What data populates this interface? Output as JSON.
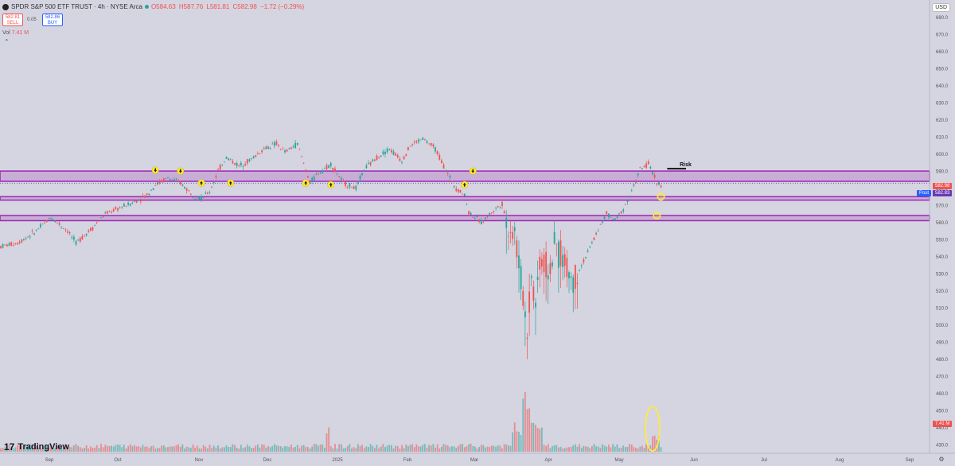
{
  "header": {
    "title": "SPDR S&P 500 ETF TRUST · 4h · NYSE Arca",
    "ohlc": {
      "o": "O584.63",
      "h": "H587.76",
      "l": "L581.81",
      "c": "C582.98",
      "chg": "−1.72 (−0.29%)"
    }
  },
  "trade": {
    "sell_price": "582.81",
    "sell_label": "SELL",
    "spread": "0.05",
    "buy_price": "582.86",
    "buy_label": "BUY"
  },
  "volume": {
    "label": "Vol",
    "value": "7.41 M",
    "axis_badge": "7.41 M"
  },
  "currency": "USD",
  "badges": {
    "last": "582.98",
    "post_label": "Post",
    "post_value": "582.83"
  },
  "annotations": {
    "risk_label": "Risk"
  },
  "brand": {
    "name": "TradingView",
    "mark": "17"
  },
  "colors": {
    "up": "#26a69a",
    "down": "#ef5350",
    "zone": "#9c27b0",
    "highlight": "#ffeb3b",
    "background": "#d5d4e1"
  },
  "chart_data": {
    "type": "candlestick",
    "title": "SPDR S&P 500 ETF TRUST · 4h · NYSE Arca",
    "ylim": [
      425,
      690
    ],
    "y_ticks": [
      430,
      440,
      450,
      460,
      470,
      480,
      490,
      500,
      510,
      520,
      530,
      540,
      550,
      560,
      570,
      580,
      590,
      600,
      610,
      620,
      630,
      640,
      650,
      660,
      670,
      680
    ],
    "x_ticks": [
      "Sep",
      "Oct",
      "Nov",
      "Dec",
      "2025",
      "Feb",
      "Mar",
      "Apr",
      "May",
      "Jun",
      "Jul",
      "Aug",
      "Sep"
    ],
    "price_path_anchors": [
      [
        0,
        546
      ],
      [
        4,
        548
      ],
      [
        8,
        554
      ],
      [
        12,
        563
      ],
      [
        16,
        555
      ],
      [
        18,
        548
      ],
      [
        22,
        557
      ],
      [
        25,
        565
      ],
      [
        28,
        568
      ],
      [
        32,
        572
      ],
      [
        35,
        576
      ],
      [
        37,
        582
      ],
      [
        40,
        586
      ],
      [
        43,
        583
      ],
      [
        46,
        576
      ],
      [
        48,
        574
      ],
      [
        50,
        578
      ],
      [
        52,
        590
      ],
      [
        54,
        598
      ],
      [
        57,
        593
      ],
      [
        60,
        597
      ],
      [
        63,
        603
      ],
      [
        66,
        606
      ],
      [
        68,
        601
      ],
      [
        71,
        606
      ],
      [
        74,
        583
      ],
      [
        76,
        589
      ],
      [
        79,
        594
      ],
      [
        82,
        583
      ],
      [
        85,
        580
      ],
      [
        87,
        591
      ],
      [
        90,
        598
      ],
      [
        93,
        603
      ],
      [
        96,
        596
      ],
      [
        98,
        605
      ],
      [
        101,
        609
      ],
      [
        104,
        603
      ],
      [
        107,
        588
      ],
      [
        109,
        580
      ],
      [
        111,
        576
      ],
      [
        112,
        566
      ],
      [
        115,
        560
      ],
      [
        118,
        567
      ],
      [
        120,
        571
      ],
      [
        121,
        560
      ],
      [
        123,
        555
      ],
      [
        124,
        535
      ],
      [
        125,
        518
      ],
      [
        126,
        497
      ],
      [
        127,
        530
      ],
      [
        128,
        512
      ],
      [
        129,
        540
      ],
      [
        131,
        532
      ],
      [
        133,
        546
      ],
      [
        135,
        536
      ],
      [
        137,
        526
      ],
      [
        139,
        535
      ],
      [
        141,
        545
      ],
      [
        143,
        556
      ],
      [
        145,
        565
      ],
      [
        147,
        561
      ],
      [
        149,
        568
      ],
      [
        151,
        578
      ],
      [
        153,
        591
      ],
      [
        155,
        594
      ],
      [
        157,
        584
      ],
      [
        158,
        581
      ]
    ],
    "volume_spikes": [
      [
        78,
        3.4
      ],
      [
        125,
        7.8
      ],
      [
        126,
        5.0
      ],
      [
        127,
        3.8
      ],
      [
        128,
        3.0
      ],
      [
        156,
        2.0
      ],
      [
        157,
        1.8
      ]
    ],
    "last_price": 582.98,
    "post_price": 582.83,
    "zones": [
      {
        "low": 584,
        "high": 590
      },
      {
        "low": 573,
        "high": 575
      },
      {
        "low": 561,
        "high": 564
      }
    ],
    "risk_level": 590,
    "markers": [
      {
        "t": 37,
        "y": 590.5,
        "shape": "arrow-down"
      },
      {
        "t": 43,
        "y": 590,
        "shape": "arrow-down"
      },
      {
        "t": 48,
        "y": 583,
        "shape": "arrow-up"
      },
      {
        "t": 55,
        "y": 583,
        "shape": "arrow-up"
      },
      {
        "t": 73,
        "y": 583,
        "shape": "arrow-up"
      },
      {
        "t": 79,
        "y": 582,
        "shape": "arrow-up"
      },
      {
        "t": 111,
        "y": 582,
        "shape": "arrow-up"
      },
      {
        "t": 113,
        "y": 590,
        "shape": "arrow-down"
      },
      {
        "t": 158,
        "y": 575,
        "shape": "circle"
      },
      {
        "t": 157,
        "y": 564,
        "shape": "circle"
      }
    ],
    "volume_highlight": {
      "t": 156
    }
  }
}
